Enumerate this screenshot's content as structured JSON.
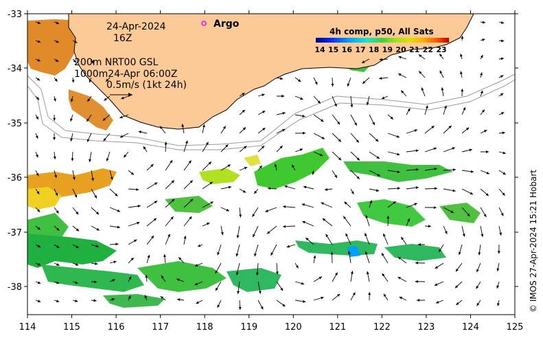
{
  "annotations": {
    "date": "24-Apr-2024",
    "hour": "16Z",
    "argo_label": "Argo",
    "depth_line1": "200m  NRT00 GSL",
    "depth_line2": "1000m24-Apr 06:00Z",
    "scale_label": "0.5m/s (1kt 24h)"
  },
  "colorbar": {
    "title": "4h comp, p50, All Sats",
    "ticks": [
      "14",
      "15",
      "16",
      "17",
      "18",
      "19",
      "20",
      "21",
      "22",
      "23"
    ],
    "colors": [
      "#00007f",
      "#0030ff",
      "#00a0ff",
      "#20e0d0",
      "#40d040",
      "#a0e020",
      "#e0e000",
      "#ffb000",
      "#ff6000",
      "#c00000"
    ]
  },
  "axes": {
    "x_ticks": [
      "114",
      "115",
      "116",
      "117",
      "118",
      "119",
      "120",
      "121",
      "122",
      "123",
      "124",
      "125"
    ],
    "y_ticks": [
      "-33",
      "-34",
      "-35",
      "-36",
      "-37",
      "-38"
    ]
  },
  "credit": "© IMOS 27-Apr-2024 15:21 Hobart",
  "colors": {
    "land": "#fcca97",
    "argo": "#ff00ff"
  }
}
